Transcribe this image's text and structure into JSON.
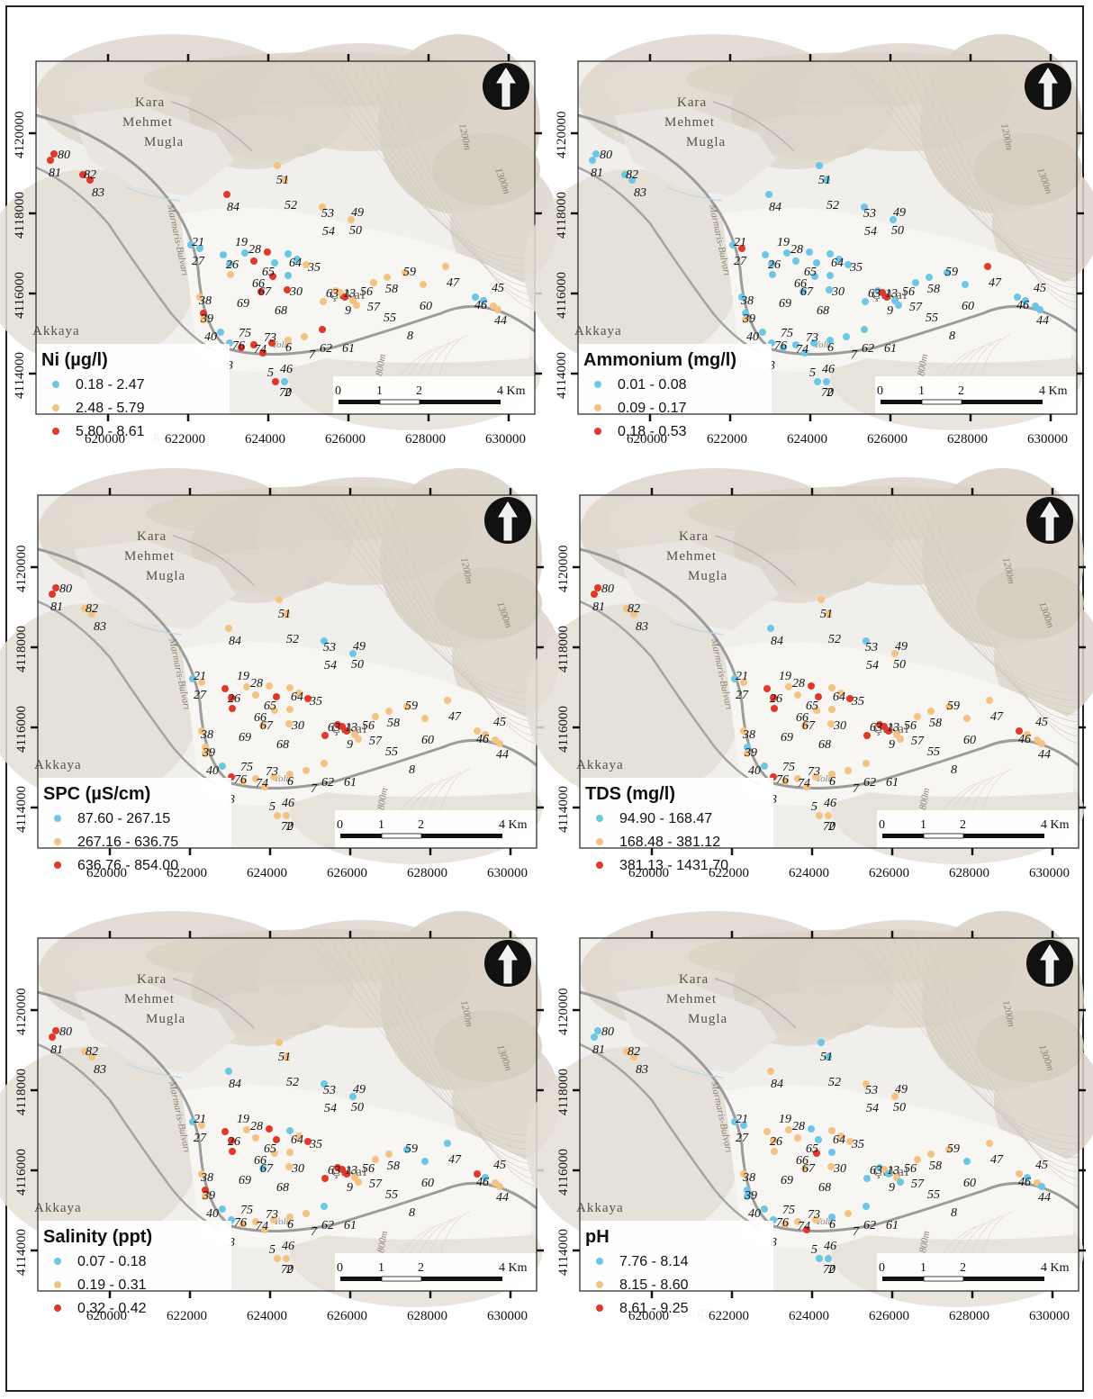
{
  "place_names": {
    "p1": "Kara",
    "p2": "Mehmet",
    "p3": "Mugla",
    "akkaya": "Akkaya",
    "cakal": "Çakal",
    "yolu": "Yolu",
    "gzi": "gzi"
  },
  "road_label": "Marmaris-Bulvarı",
  "contour_labels": [
    "1200m",
    "1300m",
    "800m"
  ],
  "x_ticks": [
    "620000",
    "622000",
    "624000",
    "626000",
    "628000",
    "630000"
  ],
  "y_ticks": [
    "4120000",
    "4118000",
    "4116000",
    "4114000"
  ],
  "scale_bar": {
    "labels": [
      "0",
      "1",
      "2",
      "4 Km"
    ]
  },
  "north_arrow_icon": "north-arrow-icon",
  "colors": {
    "low": "#6ec6e6",
    "mid": "#f4c383",
    "high": "#e0382a"
  },
  "site_ids": [
    "80",
    "81",
    "82",
    "83",
    "84",
    "51",
    "52",
    "53",
    "49",
    "54",
    "50",
    "21",
    "19",
    "28",
    "27",
    "26",
    "64",
    "35",
    "65",
    "66",
    "67",
    "30",
    "59",
    "47",
    "45",
    "38",
    "63",
    "13",
    "56",
    "58",
    "69",
    "9",
    "57",
    "46",
    "39",
    "68",
    "55",
    "60",
    "44",
    "75",
    "73",
    "40",
    "76",
    "74",
    "6",
    "62",
    "61",
    "8",
    "3",
    "7",
    "5",
    "46b",
    "2",
    "70"
  ],
  "panels": [
    {
      "id": "ni",
      "legend_title": "Ni (µg/l)",
      "classes": [
        "0.18 - 2.47",
        "2.48 - 5.79",
        "5.80 - 8.61"
      ],
      "show_gzi": true
    },
    {
      "id": "ammonium",
      "legend_title": "Ammonium (mg/l)",
      "classes": [
        "0.01 - 0.08",
        "0.09 - 0.17",
        "0.18 - 0.53"
      ],
      "show_gzi": false
    },
    {
      "id": "spc",
      "legend_title": "SPC (µS/cm)",
      "classes": [
        "87.60 - 267.15",
        "267.16 - 636.75",
        "636.76 - 854.00"
      ],
      "show_gzi": false
    },
    {
      "id": "tds",
      "legend_title": "TDS (mg/l)",
      "classes": [
        "94.90 - 168.47",
        "168.48 - 381.12",
        "381.13 - 1431.70"
      ],
      "show_gzi": false
    },
    {
      "id": "salinity",
      "legend_title": "Salinity (ppt)",
      "classes": [
        "0.07 - 0.18",
        "0.19 - 0.31",
        "0.32 - 0.42"
      ],
      "show_gzi": false
    },
    {
      "id": "ph",
      "legend_title": "pH",
      "classes": [
        "7.76 - 8.14",
        "8.15 - 8.60",
        "8.61 - 9.25"
      ],
      "show_gzi": true
    }
  ]
}
